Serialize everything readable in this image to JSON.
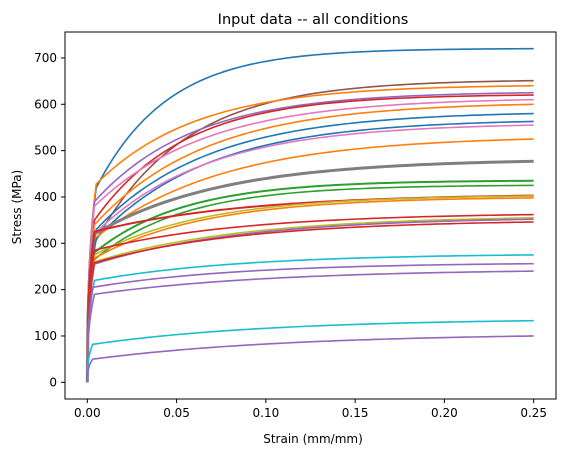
{
  "chart_data": {
    "type": "line",
    "title": "Input data -- all conditions",
    "xlabel": "Strain (mm/mm)",
    "ylabel": "Stress (MPa)",
    "xlim": [
      -0.0125,
      0.2625
    ],
    "ylim": [
      -36,
      756
    ],
    "xticks": [
      0.0,
      0.05,
      0.1,
      0.15,
      0.2,
      0.25
    ],
    "xtick_labels": [
      "0.00",
      "0.05",
      "0.10",
      "0.15",
      "0.20",
      "0.25"
    ],
    "yticks": [
      0,
      100,
      200,
      300,
      400,
      500,
      600,
      700
    ],
    "ytick_labels": [
      "0",
      "100",
      "200",
      "300",
      "400",
      "500",
      "600",
      "700"
    ],
    "grid": false,
    "legend": "none",
    "series": [
      {
        "color": "#1f77b4",
        "yield_strain": 0.005,
        "yield_stress": 420,
        "final_stress": 720,
        "k": 25
      },
      {
        "color": "#8c564b",
        "yield_strain": 0.004,
        "yield_stress": 300,
        "final_stress": 651,
        "k": 20
      },
      {
        "color": "#ff7f0e",
        "yield_strain": 0.005,
        "yield_stress": 428,
        "final_stress": 640,
        "k": 18
      },
      {
        "color": "#9467bd",
        "yield_strain": 0.004,
        "yield_stress": 390,
        "final_stress": 625,
        "k": 18
      },
      {
        "color": "#d62728",
        "yield_strain": 0.004,
        "yield_stress": 350,
        "final_stress": 620,
        "k": 20
      },
      {
        "color": "#e377c2",
        "yield_strain": 0.004,
        "yield_stress": 380,
        "final_stress": 610,
        "k": 16
      },
      {
        "color": "#ff7f0e",
        "yield_strain": 0.004,
        "yield_stress": 340,
        "final_stress": 600,
        "k": 16
      },
      {
        "color": "#1f77b4",
        "yield_strain": 0.005,
        "yield_stress": 330,
        "final_stress": 580,
        "k": 16
      },
      {
        "color": "#1f77b4",
        "yield_strain": 0.005,
        "yield_stress": 310,
        "final_stress": 563,
        "k": 16
      },
      {
        "color": "#e377c2",
        "yield_strain": 0.004,
        "yield_stress": 320,
        "final_stress": 555,
        "k": 16
      },
      {
        "color": "#ff7f0e",
        "yield_strain": 0.004,
        "yield_stress": 310,
        "final_stress": 525,
        "k": 14
      },
      {
        "color": "#7f7f7f",
        "yield_strain": 0.004,
        "yield_stress": 320,
        "final_stress": 477,
        "k": 14,
        "width": 3
      },
      {
        "color": "#2ca02c",
        "yield_strain": 0.004,
        "yield_stress": 280,
        "final_stress": 435,
        "k": 20,
        "width": 2
      },
      {
        "color": "#2ca02c",
        "yield_strain": 0.004,
        "yield_stress": 265,
        "final_stress": 425,
        "k": 20
      },
      {
        "color": "#d62728",
        "yield_strain": 0.004,
        "yield_stress": 325,
        "final_stress": 403,
        "k": 12,
        "width": 2
      },
      {
        "color": "#bcbd22",
        "yield_strain": 0.004,
        "yield_stress": 275,
        "final_stress": 402,
        "k": 16
      },
      {
        "color": "#ff7f0e",
        "yield_strain": 0.004,
        "yield_stress": 268,
        "final_stress": 398,
        "k": 16
      },
      {
        "color": "#d62728",
        "yield_strain": 0.004,
        "yield_stress": 285,
        "final_stress": 362,
        "k": 12
      },
      {
        "color": "#bcbd22",
        "yield_strain": 0.004,
        "yield_stress": 260,
        "final_stress": 355,
        "k": 12
      },
      {
        "color": "#9467bd",
        "yield_strain": 0.004,
        "yield_stress": 255,
        "final_stress": 352,
        "k": 12
      },
      {
        "color": "#d62728",
        "yield_strain": 0.004,
        "yield_stress": 258,
        "final_stress": 346,
        "k": 12
      },
      {
        "color": "#17becf",
        "yield_strain": 0.004,
        "yield_stress": 220,
        "final_stress": 275,
        "k": 12
      },
      {
        "color": "#9467bd",
        "yield_strain": 0.003,
        "yield_stress": 205,
        "final_stress": 256,
        "k": 12
      },
      {
        "color": "#9467bd",
        "yield_strain": 0.004,
        "yield_stress": 190,
        "final_stress": 240,
        "k": 10
      },
      {
        "color": "#17becf",
        "yield_strain": 0.003,
        "yield_stress": 82,
        "final_stress": 133,
        "k": 10
      },
      {
        "color": "#9467bd",
        "yield_strain": 0.003,
        "yield_stress": 50,
        "final_stress": 100,
        "k": 9
      }
    ]
  }
}
